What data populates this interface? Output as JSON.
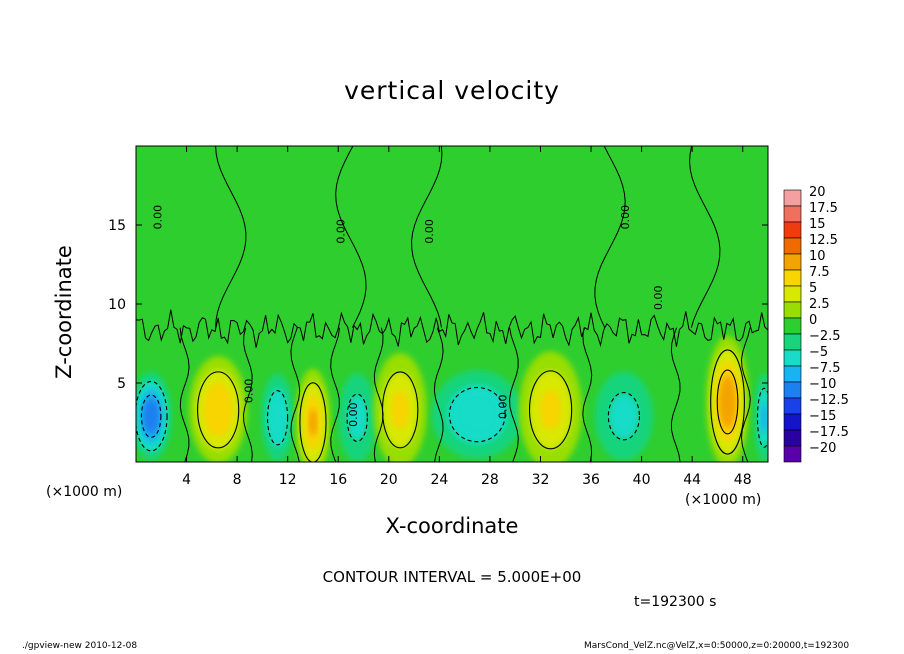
{
  "chart_data": {
    "type": "heatmap",
    "title": "vertical velocity",
    "xlabel": "X-coordinate",
    "ylabel": "Z-coordinate",
    "x_unit": "(×1000 m)",
    "xlim": [
      0,
      50
    ],
    "ylim": [
      0,
      20
    ],
    "x_ticks": [
      4,
      8,
      12,
      16,
      20,
      24,
      28,
      32,
      36,
      40,
      44,
      48
    ],
    "y_ticks": [
      5,
      10,
      15
    ],
    "colorbar": {
      "levels": [
        "20",
        "17.5",
        "15",
        "12.5",
        "10",
        "7.5",
        "5",
        "2.5",
        "0",
        "−2.5",
        "−5",
        "−7.5",
        "−10",
        "−12.5",
        "−15",
        "−17.5",
        "−20"
      ],
      "colors": [
        "#f4a0a0",
        "#f07060",
        "#ee3c10",
        "#f06a00",
        "#f4a400",
        "#f8d400",
        "#d8e800",
        "#98de00",
        "#2fce2f",
        "#18d47c",
        "#18dcc8",
        "#16b4f0",
        "#1c80f0",
        "#1a40e8",
        "#1414c8",
        "#2a00a0",
        "#5a00a8"
      ]
    },
    "contour_label": "0.00",
    "cells": [
      {
        "x": 1.2,
        "z": 2.9,
        "w": -11,
        "rx": 1.6,
        "rz": 2.8
      },
      {
        "x": 6.5,
        "z": 3.3,
        "w": 8,
        "rx": 2.3,
        "rz": 3.4
      },
      {
        "x": 11.2,
        "z": 2.8,
        "w": -6,
        "rx": 1.3,
        "rz": 2.8
      },
      {
        "x": 14.0,
        "z": 2.5,
        "w": 9,
        "rx": 1.4,
        "rz": 3.4
      },
      {
        "x": 17.5,
        "z": 2.8,
        "w": -5,
        "rx": 1.5,
        "rz": 2.8
      },
      {
        "x": 20.9,
        "z": 3.3,
        "w": 7,
        "rx": 2.1,
        "rz": 3.6
      },
      {
        "x": 27.0,
        "z": 3.0,
        "w": -6,
        "rx": 3.6,
        "rz": 2.8
      },
      {
        "x": 32.8,
        "z": 3.3,
        "w": 7,
        "rx": 2.5,
        "rz": 3.7
      },
      {
        "x": 38.6,
        "z": 2.9,
        "w": -5,
        "rx": 2.3,
        "rz": 2.8
      },
      {
        "x": 46.8,
        "z": 3.8,
        "w": 11,
        "rx": 1.7,
        "rz": 4.2
      },
      {
        "x": 49.7,
        "z": 2.8,
        "w": -7,
        "rx": 0.8,
        "rz": 2.8
      }
    ]
  },
  "contour_interval": "CONTOUR INTERVAL = 5.000E+00",
  "time_label": "t=192300 s",
  "footer": {
    "left": "./gpview-new  2010-12-08",
    "right": "MarsCond_VelZ.nc@VelZ,x=0:50000,z=0:20000,t=192300"
  }
}
